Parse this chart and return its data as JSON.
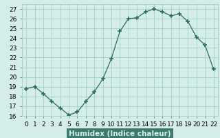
{
  "x_data": [
    0,
    1,
    2,
    3,
    4,
    5,
    6,
    7,
    8,
    9,
    10,
    11,
    12,
    13,
    14,
    15,
    16,
    17,
    18,
    19,
    20,
    21,
    22
  ],
  "y_data": [
    18.8,
    19.0,
    18.3,
    17.5,
    16.8,
    16.1,
    16.4,
    17.5,
    18.5,
    19.8,
    21.9,
    24.7,
    26.0,
    26.1,
    26.7,
    27.0,
    26.7,
    26.3,
    26.5,
    25.7,
    24.1,
    23.3,
    20.8
  ],
  "xlabel": "Humidex (Indice chaleur)",
  "line_color": "#2d6b5e",
  "marker": "+",
  "marker_size": 4,
  "bg_color": "#d4ede8",
  "grid_color": "#a8d4cc",
  "xlabel_bg": "#3d7a6e",
  "xlabel_fg": "#d4ede8",
  "ylim": [
    16,
    27.5
  ],
  "xlim": [
    -0.5,
    22.5
  ],
  "xticks": [
    0,
    1,
    2,
    3,
    4,
    5,
    6,
    7,
    8,
    9,
    10,
    11,
    12,
    13,
    14,
    15,
    16,
    17,
    18,
    19,
    20,
    21,
    22
  ],
  "yticks": [
    16,
    17,
    18,
    19,
    20,
    21,
    22,
    23,
    24,
    25,
    26,
    27
  ],
  "tick_fontsize": 6.5,
  "xlabel_fontsize": 7.5
}
